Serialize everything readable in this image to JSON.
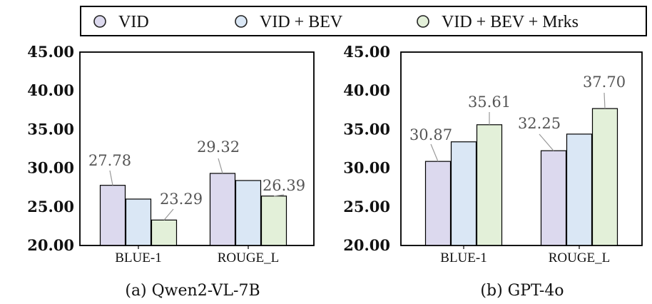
{
  "legend": {
    "items": [
      {
        "label": "VID",
        "color": "#dcd9ee"
      },
      {
        "label": "VID + BEV",
        "color": "#dae7f5"
      },
      {
        "label": "VID + BEV + Mrks",
        "color": "#e3f0d9"
      }
    ]
  },
  "chart_data": [
    {
      "type": "bar",
      "caption": "(a) Qwen2-VL-7B",
      "categories": [
        "BLUE-1",
        "ROUGE_L"
      ],
      "ylim": [
        20,
        45
      ],
      "yticks": [
        "20.00",
        "25.00",
        "30.00",
        "35.00",
        "40.00",
        "45.00"
      ],
      "series": [
        {
          "name": "VID",
          "values": [
            27.78,
            29.32
          ]
        },
        {
          "name": "VID + BEV",
          "values": [
            26.0,
            28.4
          ]
        },
        {
          "name": "VID + BEV + Mrks",
          "values": [
            23.29,
            26.39
          ]
        }
      ],
      "annotations": [
        {
          "text": "27.78",
          "category": 0,
          "series": 0
        },
        {
          "text": "23.29",
          "category": 0,
          "series": 2
        },
        {
          "text": "29.32",
          "category": 1,
          "series": 0
        },
        {
          "text": "26.39",
          "category": 1,
          "series": 2
        }
      ]
    },
    {
      "type": "bar",
      "caption": "(b) GPT-4o",
      "categories": [
        "BLUE-1",
        "ROUGE_L"
      ],
      "ylim": [
        20,
        45
      ],
      "yticks": [
        "20.00",
        "25.00",
        "30.00",
        "35.00",
        "40.00",
        "45.00"
      ],
      "series": [
        {
          "name": "VID",
          "values": [
            30.87,
            32.25
          ]
        },
        {
          "name": "VID + BEV",
          "values": [
            33.4,
            34.4
          ]
        },
        {
          "name": "VID + BEV + Mrks",
          "values": [
            35.61,
            37.7
          ]
        }
      ],
      "annotations": [
        {
          "text": "30.87",
          "category": 0,
          "series": 0
        },
        {
          "text": "35.61",
          "category": 0,
          "series": 2
        },
        {
          "text": "32.25",
          "category": 1,
          "series": 0
        },
        {
          "text": "37.70",
          "category": 1,
          "series": 2
        }
      ]
    }
  ]
}
